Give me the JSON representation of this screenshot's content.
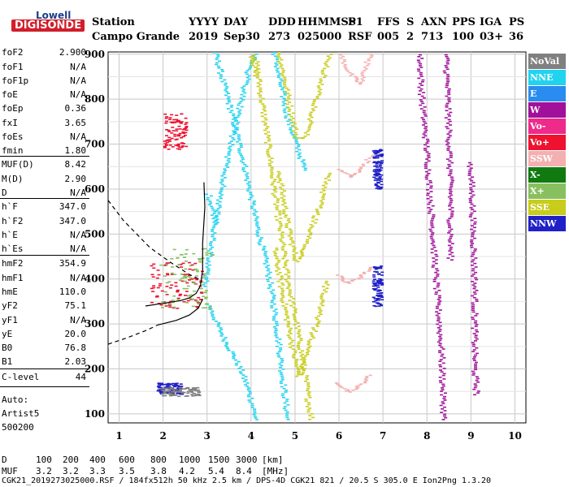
{
  "logo": {
    "top": "Lowell",
    "bottom": "DIGISONDE"
  },
  "header": {
    "labels": [
      "Station",
      "YYYY",
      "DAY",
      "DDD",
      "HHMMSS",
      "P1",
      "FFS",
      "S",
      "AXN",
      "PPS",
      "IGA",
      "PS"
    ],
    "values": [
      "Campo Grande",
      "2019",
      "Sep30",
      "273",
      "025000",
      "RSF",
      "005",
      "2",
      "713",
      "100",
      "03+",
      "36"
    ]
  },
  "params": [
    {
      "k": "foF2",
      "v": "2.900"
    },
    {
      "k": "foF1",
      "v": "N/A"
    },
    {
      "k": "foF1p",
      "v": "N/A"
    },
    {
      "k": "foE",
      "v": "N/A"
    },
    {
      "k": "foEp",
      "v": "0.36"
    },
    {
      "k": "fxI",
      "v": "3.65"
    },
    {
      "k": "foEs",
      "v": "N/A"
    },
    {
      "k": "fmin",
      "v": "1.80"
    },
    {
      "k": "MUF(D)",
      "v": "8.42"
    },
    {
      "k": "M(D)",
      "v": "2.90"
    },
    {
      "k": "D",
      "v": "N/A"
    },
    {
      "k": "h`F",
      "v": "347.0"
    },
    {
      "k": "h`F2",
      "v": "347.0"
    },
    {
      "k": "h`E",
      "v": "N/A"
    },
    {
      "k": "h`Es",
      "v": "N/A"
    },
    {
      "k": "hmF2",
      "v": "354.9"
    },
    {
      "k": "hmF1",
      "v": "N/A"
    },
    {
      "k": "hmE",
      "v": "110.0"
    },
    {
      "k": "yF2",
      "v": "75.1"
    },
    {
      "k": "yF1",
      "v": "N/A"
    },
    {
      "k": "yE",
      "v": "20.0"
    },
    {
      "k": "B0",
      "v": "76.8"
    },
    {
      "k": "B1",
      "v": "2.03"
    },
    {
      "k": "C-level",
      "v": "44"
    }
  ],
  "auto": [
    "Auto:",
    "Artist5",
    "500200"
  ],
  "legend": [
    {
      "name": "NoVal",
      "color": "#808080"
    },
    {
      "name": "NNE",
      "color": "#22d3f0"
    },
    {
      "name": "E",
      "color": "#2a8cf0"
    },
    {
      "name": "W",
      "color": "#a0109a"
    },
    {
      "name": "Vo-",
      "color": "#ee2a8a"
    },
    {
      "name": "Vo+",
      "color": "#ee1230"
    },
    {
      "name": "SSW",
      "color": "#f4b0b0"
    },
    {
      "name": "X-",
      "color": "#107a10"
    },
    {
      "name": "X+",
      "color": "#88c060"
    },
    {
      "name": "SSE",
      "color": "#c8cc1a"
    },
    {
      "name": "NNW",
      "color": "#2020c8"
    }
  ],
  "footer": {
    "d_label": "D",
    "d_values": [
      "100",
      "200",
      "400",
      "600",
      "800",
      "1000",
      "1500",
      "3000",
      "[km]"
    ],
    "muf_label": "MUF",
    "muf_values": [
      "3.2",
      "3.2",
      "3.3",
      "3.5",
      "3.8",
      "4.2",
      "5.4",
      "8.4",
      "[MHz]"
    ],
    "file_line": "CGK21_2019273025000.RSF / 184fx512h 50 kHz 2.5 km / DPS-4D CGK21 821 / 20.5 S 305.0 E Ion2Png 1.3.20"
  },
  "chart_data": {
    "type": "scatter",
    "x_ticks": [
      1,
      2,
      3,
      4,
      5,
      6,
      7,
      8,
      9,
      10
    ],
    "y_ticks": [
      100,
      200,
      300,
      400,
      500,
      600,
      700,
      800,
      900
    ],
    "xlim": [
      0.75,
      10.25
    ],
    "ylim": [
      80,
      905
    ],
    "grid": true,
    "profile_curve": [
      [
        1.6,
        340
      ],
      [
        2.0,
        346
      ],
      [
        2.4,
        352
      ],
      [
        2.6,
        358
      ],
      [
        2.75,
        368
      ],
      [
        2.85,
        385
      ],
      [
        2.9,
        420
      ],
      [
        2.9,
        480
      ],
      [
        2.95,
        560
      ],
      [
        2.93,
        615
      ]
    ],
    "profile_solid_lower": [
      [
        1.85,
        297
      ],
      [
        2.3,
        308
      ],
      [
        2.6,
        320
      ],
      [
        2.8,
        335
      ],
      [
        2.9,
        355
      ]
    ],
    "profile_dashed": [
      [
        0.75,
        575
      ],
      [
        1.1,
        530
      ],
      [
        1.7,
        470
      ],
      [
        2.2,
        435
      ],
      [
        2.6,
        410
      ],
      [
        2.85,
        398
      ]
    ],
    "profile_dashed_lower": [
      [
        0.75,
        255
      ],
      [
        1.2,
        270
      ],
      [
        1.6,
        285
      ],
      [
        1.85,
        296
      ]
    ],
    "traces": [
      {
        "legend": "NNE",
        "points": [
          [
            2.9,
            385
          ],
          [
            3.0,
            440
          ],
          [
            3.1,
            500
          ],
          [
            3.3,
            600
          ],
          [
            3.5,
            700
          ],
          [
            3.75,
            800
          ],
          [
            3.95,
            880
          ],
          [
            4.1,
            905
          ]
        ]
      },
      {
        "legend": "NNE",
        "points": [
          [
            3.0,
            345
          ],
          [
            3.2,
            300
          ],
          [
            3.4,
            260
          ],
          [
            3.6,
            225
          ],
          [
            3.75,
            195
          ],
          [
            3.85,
            170
          ],
          [
            3.95,
            140
          ],
          [
            4.05,
            100
          ],
          [
            4.1,
            85
          ]
        ]
      },
      {
        "legend": "NNE",
        "points": [
          [
            3.15,
            905
          ],
          [
            3.5,
            780
          ],
          [
            3.8,
            660
          ],
          [
            4.1,
            520
          ],
          [
            4.35,
            420
          ],
          [
            4.5,
            330
          ],
          [
            4.62,
            240
          ],
          [
            4.72,
            150
          ],
          [
            4.8,
            85
          ]
        ]
      },
      {
        "legend": "NNE",
        "points": [
          [
            4.5,
            905
          ],
          [
            4.6,
            850
          ],
          [
            4.8,
            760
          ],
          [
            5.0,
            700
          ],
          [
            5.2,
            640
          ]
        ]
      },
      {
        "legend": "NNE",
        "points": [
          [
            3.0,
            590
          ],
          [
            3.1,
            555
          ],
          [
            3.2,
            520
          ]
        ]
      },
      {
        "legend": "SSE",
        "points": [
          [
            4.05,
            900
          ],
          [
            4.3,
            740
          ],
          [
            4.55,
            560
          ],
          [
            4.8,
            400
          ],
          [
            5.0,
            300
          ],
          [
            5.12,
            230
          ],
          [
            5.22,
            170
          ],
          [
            5.3,
            110
          ],
          [
            5.35,
            85
          ]
        ]
      },
      {
        "legend": "SSE",
        "points": [
          [
            4.6,
            905
          ],
          [
            4.8,
            810
          ],
          [
            5.0,
            715
          ],
          [
            5.2,
            715
          ],
          [
            5.4,
            780
          ],
          [
            5.6,
            850
          ],
          [
            5.75,
            905
          ]
        ]
      },
      {
        "legend": "SSE",
        "points": [
          [
            4.6,
            640
          ],
          [
            4.8,
            520
          ],
          [
            5.0,
            440
          ],
          [
            5.2,
            470
          ],
          [
            5.5,
            560
          ],
          [
            5.75,
            640
          ]
        ]
      },
      {
        "legend": "SSE",
        "points": [
          [
            4.5,
            470
          ],
          [
            4.75,
            330
          ],
          [
            4.95,
            230
          ],
          [
            5.05,
            185
          ],
          [
            5.2,
            230
          ],
          [
            5.45,
            300
          ],
          [
            5.7,
            400
          ]
        ]
      },
      {
        "legend": "SSE",
        "points": [
          [
            4.0,
            895
          ],
          [
            4.1,
            850
          ]
        ]
      },
      {
        "legend": "SSW",
        "points": [
          [
            6.0,
            900
          ],
          [
            6.2,
            860
          ],
          [
            6.45,
            835
          ],
          [
            6.6,
            880
          ],
          [
            6.7,
            905
          ]
        ]
      },
      {
        "legend": "SSW",
        "points": [
          [
            6.0,
            645
          ],
          [
            6.25,
            628
          ],
          [
            6.5,
            650
          ],
          [
            6.72,
            680
          ]
        ]
      },
      {
        "legend": "SSW",
        "points": [
          [
            5.95,
            410
          ],
          [
            6.15,
            392
          ],
          [
            6.45,
            405
          ],
          [
            6.7,
            430
          ]
        ]
      },
      {
        "legend": "SSW",
        "points": [
          [
            5.95,
            170
          ],
          [
            6.2,
            150
          ],
          [
            6.45,
            165
          ],
          [
            6.7,
            190
          ]
        ]
      },
      {
        "legend": "W",
        "points": [
          [
            7.8,
            900
          ],
          [
            7.85,
            800
          ],
          [
            7.95,
            700
          ],
          [
            8.1,
            500
          ],
          [
            8.2,
            360
          ],
          [
            8.3,
            230
          ],
          [
            8.35,
            85
          ]
        ]
      },
      {
        "legend": "W",
        "points": [
          [
            8.4,
            900
          ],
          [
            8.45,
            760
          ],
          [
            8.5,
            600
          ],
          [
            8.5,
            440
          ]
        ]
      },
      {
        "legend": "W",
        "points": [
          [
            8.95,
            660
          ],
          [
            9.0,
            560
          ],
          [
            9.05,
            380
          ],
          [
            9.05,
            200
          ],
          [
            9.1,
            140
          ]
        ]
      }
    ],
    "clusters": [
      {
        "legend": "Vo+",
        "x": [
          1.7,
          2.9
        ],
        "y": [
          335,
          440
        ]
      },
      {
        "legend": "X+",
        "x": [
          1.9,
          3.1
        ],
        "y": [
          335,
          470
        ]
      },
      {
        "legend": "Vo+",
        "x": [
          2.0,
          2.5
        ],
        "y": [
          690,
          770
        ]
      },
      {
        "legend": "NNW",
        "x": [
          1.85,
          2.4
        ],
        "y": [
          145,
          170
        ]
      },
      {
        "legend": "NoVal",
        "x": [
          1.9,
          2.8
        ],
        "y": [
          140,
          160
        ]
      },
      {
        "legend": "NNW",
        "x": [
          6.75,
          6.95
        ],
        "y": [
          600,
          690
        ]
      },
      {
        "legend": "NNW",
        "x": [
          6.75,
          6.95
        ],
        "y": [
          340,
          430
        ]
      }
    ]
  }
}
